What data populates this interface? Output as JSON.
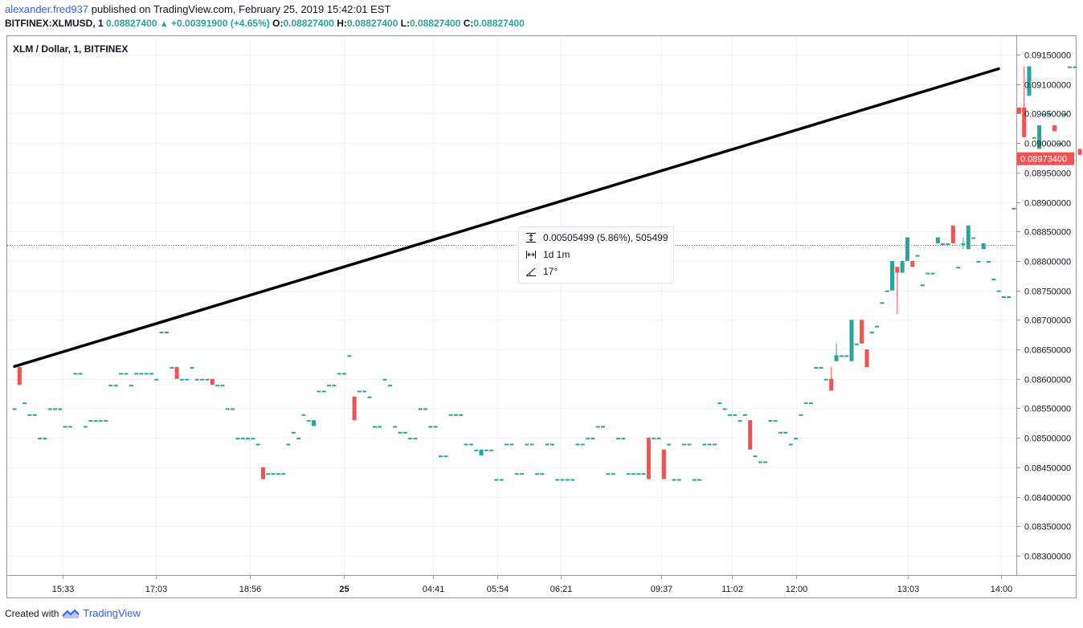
{
  "header": {
    "user": "alexander.fred937",
    "published_text": "published on TradingView.com, February 25, 2019 15:42:01 EST",
    "symbol": "BITFINEX:XLMUSD, 1",
    "last": "0.08827400",
    "change": "+0.00391900 (+4.65%)",
    "o_label": "O:",
    "o_value": "0.08827400",
    "h_label": "H:",
    "h_value": "0.08827400",
    "l_label": "L:",
    "l_value": "0.08827400",
    "c_label": "C:",
    "c_value": "0.08827400"
  },
  "pane_title": "XLM / Dollar, 1, BITFINEX",
  "measure": {
    "price_range": "0.00505499 (5.86%), 505499",
    "time_range": "1d 1m",
    "angle": "17°"
  },
  "footer": {
    "created_with": "Created with",
    "brand": "TradingView"
  },
  "colors": {
    "up": "#26a69a",
    "down": "#ef5350",
    "grid": "#eef0f3",
    "trendline": "#000000",
    "price_line": "#26a69a",
    "price_label_bg": "#ef5350"
  },
  "chart_data": {
    "type": "candlestick",
    "title": "XLM / Dollar, 1, BITFINEX",
    "y_ticks": [
      "0.09150000",
      "0.09100000",
      "0.09050000",
      "0.09000000",
      "0.08950000",
      "0.08900000",
      "0.08850000",
      "0.08800000",
      "0.08750000",
      "0.08700000",
      "0.08650000",
      "0.08600000",
      "0.08550000",
      "0.08500000",
      "0.08450000",
      "0.08400000",
      "0.08350000",
      "0.08300000"
    ],
    "y_tick_values": [
      0.0915,
      0.091,
      0.0905,
      0.09,
      0.0895,
      0.089,
      0.0885,
      0.088,
      0.0875,
      0.087,
      0.0865,
      0.086,
      0.0855,
      0.085,
      0.0845,
      0.084,
      0.0835,
      0.083
    ],
    "x_ticks": [
      "15:33",
      "17:03",
      "18:56",
      "25",
      "04:41",
      "05:54",
      "06:21",
      "09:37",
      "11:02",
      "12:00",
      "13:03",
      "14:00"
    ],
    "x_tick_bold": [
      "25"
    ],
    "last_price": 0.088274,
    "current_price": 0.089734,
    "current_price_label": "0.08973400",
    "grid": true,
    "trendline": {
      "start": {
        "bar": 0,
        "price": 0.08621
      },
      "end": {
        "bar": 194,
        "price": 0.09126
      }
    },
    "candles": [
      [
        0.0855,
        0.0855,
        0.0855,
        0.0855
      ],
      [
        0.0862,
        0.0862,
        0.0859,
        0.0859
      ],
      [
        0.0856,
        0.0856,
        0.0856,
        0.0856
      ],
      [
        0.0854,
        0.0854,
        0.0854,
        0.0854
      ],
      [
        0.0854,
        0.0854,
        0.0854,
        0.0854
      ],
      [
        0.085,
        0.085,
        0.085,
        0.085
      ],
      [
        0.085,
        0.085,
        0.085,
        0.085
      ],
      [
        0.0855,
        0.0855,
        0.0855,
        0.0855
      ],
      [
        0.0855,
        0.0855,
        0.0855,
        0.0855
      ],
      [
        0.0855,
        0.0855,
        0.0855,
        0.0855
      ],
      [
        0.0852,
        0.0852,
        0.0852,
        0.0852
      ],
      [
        0.0852,
        0.0852,
        0.0852,
        0.0852
      ],
      [
        0.0861,
        0.0861,
        0.0861,
        0.0861
      ],
      [
        0.0861,
        0.0861,
        0.0861,
        0.0861
      ],
      [
        0.0852,
        0.0852,
        0.0852,
        0.0852
      ],
      [
        0.0853,
        0.0853,
        0.0853,
        0.0853
      ],
      [
        0.0853,
        0.0853,
        0.0853,
        0.0853
      ],
      [
        0.0853,
        0.0853,
        0.0853,
        0.0853
      ],
      [
        0.0853,
        0.0853,
        0.0853,
        0.0853
      ],
      [
        0.0859,
        0.0859,
        0.0859,
        0.0859
      ],
      [
        0.0859,
        0.0859,
        0.0859,
        0.0859
      ],
      [
        0.0861,
        0.0861,
        0.0861,
        0.0861
      ],
      [
        0.0861,
        0.0861,
        0.0861,
        0.0861
      ],
      [
        0.0859,
        0.0859,
        0.0859,
        0.0859
      ],
      [
        0.0861,
        0.0861,
        0.0861,
        0.0861
      ],
      [
        0.0861,
        0.0861,
        0.0861,
        0.0861
      ],
      [
        0.0861,
        0.0861,
        0.0861,
        0.0861
      ],
      [
        0.0861,
        0.0861,
        0.0861,
        0.0861
      ],
      [
        0.086,
        0.086,
        0.086,
        0.086
      ],
      [
        0.0868,
        0.0868,
        0.0868,
        0.0868
      ],
      [
        0.0868,
        0.0868,
        0.0868,
        0.0868
      ],
      [
        0.0862,
        0.0862,
        0.0862,
        0.0862
      ],
      [
        0.0862,
        0.0862,
        0.086,
        0.086
      ],
      [
        0.086,
        0.086,
        0.086,
        0.086
      ],
      [
        0.086,
        0.086,
        0.086,
        0.086
      ],
      [
        0.0862,
        0.0862,
        0.0862,
        0.0862
      ],
      [
        0.086,
        0.086,
        0.086,
        0.086
      ],
      [
        0.086,
        0.086,
        0.086,
        0.086
      ],
      [
        0.086,
        0.086,
        0.086,
        0.086
      ],
      [
        0.086,
        0.086,
        0.0859,
        0.0859
      ],
      [
        0.0859,
        0.0859,
        0.0859,
        0.0859
      ],
      [
        0.0859,
        0.0859,
        0.0859,
        0.0859
      ],
      [
        0.0855,
        0.0855,
        0.0855,
        0.0855
      ],
      [
        0.0855,
        0.0855,
        0.0855,
        0.0855
      ],
      [
        0.085,
        0.085,
        0.085,
        0.085
      ],
      [
        0.085,
        0.085,
        0.085,
        0.085
      ],
      [
        0.085,
        0.085,
        0.085,
        0.085
      ],
      [
        0.085,
        0.085,
        0.085,
        0.085
      ],
      [
        0.0849,
        0.0849,
        0.0849,
        0.0849
      ],
      [
        0.0845,
        0.0845,
        0.0843,
        0.0843
      ],
      [
        0.0844,
        0.0844,
        0.0844,
        0.0844
      ],
      [
        0.0844,
        0.0844,
        0.0844,
        0.0844
      ],
      [
        0.0844,
        0.0844,
        0.0844,
        0.0844
      ],
      [
        0.0844,
        0.0844,
        0.0844,
        0.0844
      ],
      [
        0.0849,
        0.0849,
        0.0849,
        0.0849
      ],
      [
        0.0851,
        0.0851,
        0.0851,
        0.0851
      ],
      [
        0.085,
        0.085,
        0.085,
        0.085
      ],
      [
        0.0854,
        0.0854,
        0.0854,
        0.0854
      ],
      [
        0.0853,
        0.0853,
        0.0853,
        0.0853
      ],
      [
        0.0852,
        0.0853,
        0.0852,
        0.0853
      ],
      [
        0.0858,
        0.0858,
        0.0858,
        0.0858
      ],
      [
        0.0858,
        0.0858,
        0.0858,
        0.0858
      ],
      [
        0.0859,
        0.0859,
        0.0859,
        0.0859
      ],
      [
        0.0859,
        0.0859,
        0.0859,
        0.0859
      ],
      [
        0.0861,
        0.0861,
        0.0861,
        0.0861
      ],
      [
        0.0861,
        0.0861,
        0.0861,
        0.0861
      ],
      [
        0.0864,
        0.0864,
        0.0864,
        0.0864
      ],
      [
        0.0857,
        0.0857,
        0.0853,
        0.0853
      ],
      [
        0.0858,
        0.0858,
        0.0858,
        0.0858
      ],
      [
        0.0858,
        0.0858,
        0.0858,
        0.0858
      ],
      [
        0.0857,
        0.0857,
        0.0857,
        0.0857
      ],
      [
        0.0852,
        0.0852,
        0.0852,
        0.0852
      ],
      [
        0.0852,
        0.0852,
        0.0852,
        0.0852
      ],
      [
        0.086,
        0.086,
        0.086,
        0.086
      ],
      [
        0.0859,
        0.0859,
        0.0859,
        0.0859
      ],
      [
        0.0852,
        0.0852,
        0.0852,
        0.0852
      ],
      [
        0.0851,
        0.0851,
        0.0851,
        0.0851
      ],
      [
        0.0851,
        0.0851,
        0.0851,
        0.0851
      ],
      [
        0.085,
        0.085,
        0.085,
        0.085
      ],
      [
        0.085,
        0.085,
        0.085,
        0.085
      ],
      [
        0.0855,
        0.0855,
        0.0855,
        0.0855
      ],
      [
        0.0855,
        0.0855,
        0.0855,
        0.0855
      ],
      [
        0.0852,
        0.0852,
        0.0852,
        0.0852
      ],
      [
        0.0852,
        0.0852,
        0.0852,
        0.0852
      ],
      [
        0.0847,
        0.0847,
        0.0847,
        0.0847
      ],
      [
        0.0847,
        0.0847,
        0.0847,
        0.0847
      ],
      [
        0.0854,
        0.0854,
        0.0854,
        0.0854
      ],
      [
        0.0854,
        0.0854,
        0.0854,
        0.0854
      ],
      [
        0.0854,
        0.0854,
        0.0854,
        0.0854
      ],
      [
        0.0849,
        0.0849,
        0.0849,
        0.0849
      ],
      [
        0.0849,
        0.0849,
        0.0849,
        0.0849
      ],
      [
        0.0848,
        0.0848,
        0.0848,
        0.0848
      ],
      [
        0.0847,
        0.0848,
        0.0847,
        0.0848
      ],
      [
        0.0848,
        0.0848,
        0.0848,
        0.0848
      ],
      [
        0.0848,
        0.0848,
        0.0848,
        0.0848
      ],
      [
        0.0843,
        0.0843,
        0.0843,
        0.0843
      ],
      [
        0.0843,
        0.0843,
        0.0843,
        0.0843
      ],
      [
        0.0849,
        0.0849,
        0.0849,
        0.0849
      ],
      [
        0.0849,
        0.0849,
        0.0849,
        0.0849
      ],
      [
        0.0844,
        0.0844,
        0.0844,
        0.0844
      ],
      [
        0.0844,
        0.0844,
        0.0844,
        0.0844
      ],
      [
        0.0849,
        0.0849,
        0.0849,
        0.0849
      ],
      [
        0.0849,
        0.0849,
        0.0849,
        0.0849
      ],
      [
        0.0844,
        0.0844,
        0.0844,
        0.0844
      ],
      [
        0.0844,
        0.0844,
        0.0844,
        0.0844
      ],
      [
        0.0849,
        0.0849,
        0.0849,
        0.0849
      ],
      [
        0.0849,
        0.0849,
        0.0849,
        0.0849
      ],
      [
        0.0843,
        0.0843,
        0.0843,
        0.0843
      ],
      [
        0.0843,
        0.0843,
        0.0843,
        0.0843
      ],
      [
        0.0843,
        0.0843,
        0.0843,
        0.0843
      ],
      [
        0.0843,
        0.0843,
        0.0843,
        0.0843
      ],
      [
        0.0849,
        0.0849,
        0.0849,
        0.0849
      ],
      [
        0.0849,
        0.0849,
        0.0849,
        0.0849
      ],
      [
        0.085,
        0.085,
        0.085,
        0.085
      ],
      [
        0.085,
        0.085,
        0.085,
        0.085
      ],
      [
        0.0852,
        0.0852,
        0.0852,
        0.0852
      ],
      [
        0.0852,
        0.0852,
        0.0852,
        0.0852
      ],
      [
        0.0844,
        0.0844,
        0.0844,
        0.0844
      ],
      [
        0.0844,
        0.0844,
        0.0844,
        0.0844
      ],
      [
        0.085,
        0.085,
        0.085,
        0.085
      ],
      [
        0.085,
        0.085,
        0.085,
        0.085
      ],
      [
        0.0844,
        0.0844,
        0.0844,
        0.0844
      ],
      [
        0.0844,
        0.0844,
        0.0844,
        0.0844
      ],
      [
        0.0844,
        0.0844,
        0.0844,
        0.0844
      ],
      [
        0.0844,
        0.0844,
        0.0844,
        0.0844
      ],
      [
        0.085,
        0.085,
        0.0843,
        0.0843
      ],
      [
        0.085,
        0.085,
        0.085,
        0.085
      ],
      [
        0.085,
        0.085,
        0.085,
        0.085
      ],
      [
        0.0848,
        0.0848,
        0.0843,
        0.0843
      ],
      [
        0.0849,
        0.0849,
        0.0849,
        0.0849
      ],
      [
        0.0843,
        0.0843,
        0.0843,
        0.0843
      ],
      [
        0.0843,
        0.0843,
        0.0843,
        0.0843
      ],
      [
        0.0849,
        0.0849,
        0.0849,
        0.0849
      ],
      [
        0.0849,
        0.0849,
        0.0849,
        0.0849
      ],
      [
        0.0843,
        0.0843,
        0.0843,
        0.0843
      ],
      [
        0.0843,
        0.0843,
        0.0843,
        0.0843
      ],
      [
        0.0849,
        0.0849,
        0.0849,
        0.0849
      ],
      [
        0.0849,
        0.0849,
        0.0849,
        0.0849
      ],
      [
        0.0849,
        0.0849,
        0.0849,
        0.0849
      ],
      [
        0.0856,
        0.0856,
        0.0856,
        0.0856
      ],
      [
        0.0855,
        0.0855,
        0.0855,
        0.0855
      ],
      [
        0.0854,
        0.0854,
        0.0854,
        0.0854
      ],
      [
        0.0854,
        0.0854,
        0.0854,
        0.0854
      ],
      [
        0.0853,
        0.0853,
        0.0853,
        0.0853
      ],
      [
        0.0854,
        0.0854,
        0.0854,
        0.0854
      ],
      [
        0.0853,
        0.0853,
        0.0848,
        0.0848
      ],
      [
        0.0847,
        0.0847,
        0.0847,
        0.0847
      ],
      [
        0.0846,
        0.0846,
        0.0846,
        0.0846
      ],
      [
        0.0846,
        0.0846,
        0.0846,
        0.0846
      ],
      [
        0.0853,
        0.0853,
        0.0853,
        0.0853
      ],
      [
        0.0853,
        0.0853,
        0.0853,
        0.0853
      ],
      [
        0.0851,
        0.0851,
        0.0851,
        0.0851
      ],
      [
        0.0851,
        0.0851,
        0.0851,
        0.0851
      ],
      [
        0.0849,
        0.0849,
        0.0849,
        0.0849
      ],
      [
        0.085,
        0.085,
        0.085,
        0.085
      ],
      [
        0.0854,
        0.0854,
        0.0854,
        0.0854
      ],
      [
        0.0856,
        0.0856,
        0.0856,
        0.0856
      ],
      [
        0.0856,
        0.0856,
        0.0856,
        0.0856
      ],
      [
        0.0862,
        0.0862,
        0.0862,
        0.0862
      ],
      [
        0.0862,
        0.0862,
        0.0862,
        0.0862
      ],
      [
        0.086,
        0.086,
        0.086,
        0.086
      ],
      [
        0.086,
        0.0862,
        0.0858,
        0.0858
      ],
      [
        0.0863,
        0.0866,
        0.0863,
        0.0864
      ],
      [
        0.0864,
        0.0864,
        0.0864,
        0.0864
      ],
      [
        0.0864,
        0.0864,
        0.0864,
        0.0864
      ],
      [
        0.0863,
        0.087,
        0.0863,
        0.087
      ],
      [
        0.0866,
        0.0866,
        0.0866,
        0.0866
      ],
      [
        0.087,
        0.087,
        0.0866,
        0.0866
      ],
      [
        0.0865,
        0.0865,
        0.0862,
        0.0862
      ],
      [
        0.0868,
        0.0868,
        0.0868,
        0.0868
      ],
      [
        0.0869,
        0.0869,
        0.0869,
        0.0869
      ],
      [
        0.0873,
        0.0873,
        0.0873,
        0.0873
      ],
      [
        0.0875,
        0.0875,
        0.0875,
        0.0875
      ],
      [
        0.0875,
        0.088,
        0.0875,
        0.088
      ],
      [
        0.0879,
        0.0879,
        0.0871,
        0.0878
      ],
      [
        0.0878,
        0.088,
        0.0878,
        0.088
      ],
      [
        0.088,
        0.0884,
        0.088,
        0.0884
      ],
      [
        0.088,
        0.088,
        0.0879,
        0.0879
      ],
      [
        0.0881,
        0.0881,
        0.0881,
        0.0881
      ],
      [
        0.0876,
        0.0876,
        0.0876,
        0.0876
      ],
      [
        0.0878,
        0.0878,
        0.0878,
        0.0878
      ],
      [
        0.0878,
        0.0878,
        0.0878,
        0.0878
      ],
      [
        0.0883,
        0.0884,
        0.0883,
        0.0884
      ],
      [
        0.0883,
        0.0883,
        0.0883,
        0.0883
      ],
      [
        0.0883,
        0.0883,
        0.0883,
        0.0883
      ],
      [
        0.0886,
        0.0886,
        0.0883,
        0.0883
      ],
      [
        0.0879,
        0.0879,
        0.0879,
        0.0879
      ],
      [
        0.0883,
        0.0884,
        0.0882,
        0.0883
      ],
      [
        0.0882,
        0.0886,
        0.0882,
        0.0886
      ],
      [
        0.0884,
        0.0884,
        0.0884,
        0.0884
      ],
      [
        0.088,
        0.088,
        0.088,
        0.088
      ],
      [
        0.0882,
        0.0883,
        0.0882,
        0.0883
      ],
      [
        0.088,
        0.088,
        0.088,
        0.088
      ],
      [
        0.0877,
        0.0877,
        0.0877,
        0.0877
      ],
      [
        0.0875,
        0.0875,
        0.0875,
        0.0875
      ],
      [
        0.0874,
        0.0874,
        0.0874,
        0.0874
      ],
      [
        0.0874,
        0.0874,
        0.0874,
        0.0874
      ],
      [
        0.0889,
        0.0889,
        0.0889,
        0.0889
      ],
      [
        0.0906,
        0.0906,
        0.0905,
        0.0905
      ],
      [
        0.0906,
        0.0913,
        0.0901,
        0.0901
      ],
      [
        0.0908,
        0.0913,
        0.0908,
        0.0913
      ],
      [
        0.0901,
        0.0901,
        0.0901,
        0.0901
      ],
      [
        0.0899,
        0.0903,
        0.0899,
        0.0903
      ],
      [
        0.0905,
        0.0905,
        0.0905,
        0.0905
      ],
      [
        0.0905,
        0.0905,
        0.0905,
        0.0905
      ],
      [
        0.0903,
        0.0903,
        0.0902,
        0.0902
      ],
      [
        0.09,
        0.09,
        0.09,
        0.09
      ],
      [
        0.0905,
        0.0905,
        0.0905,
        0.0905
      ],
      [
        0.0913,
        0.0913,
        0.0913,
        0.0913
      ],
      [
        0.0913,
        0.0913,
        0.0913,
        0.0913
      ],
      [
        0.0899,
        0.0899,
        0.0898,
        0.0898
      ],
      [
        0.0898,
        0.0898,
        0.0897,
        0.0897
      ]
    ]
  }
}
